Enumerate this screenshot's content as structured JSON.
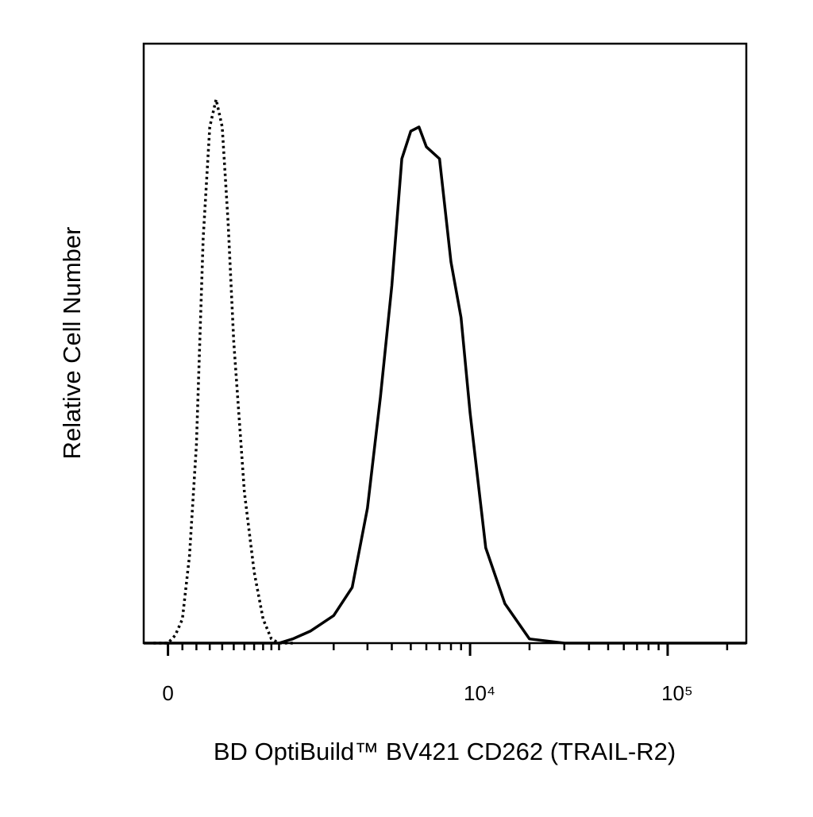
{
  "chart_data": {
    "type": "line",
    "xlabel": "BD OptiBuild™ BV421 CD262 (TRAIL-R2)",
    "ylabel": "Relative Cell Number",
    "xscale": "biexponential",
    "xlim": [
      -170,
      250000
    ],
    "ylim": [
      0,
      100
    ],
    "xticks": [
      0,
      {
        "value": 10000,
        "label": "10⁴"
      },
      {
        "value": 100000,
        "label": "10⁵"
      }
    ],
    "xminorticks": [
      100,
      200,
      300,
      400,
      500,
      600,
      700,
      800,
      900,
      1000,
      2000,
      3000,
      4000,
      5000,
      6000,
      7000,
      8000,
      9000,
      20000,
      30000,
      40000,
      50000,
      60000,
      70000,
      80000,
      90000,
      200000
    ],
    "series": [
      {
        "color": "#000000",
        "dash": "dotted",
        "x": [
          -100,
          0,
          50,
          100,
          150,
          200,
          250,
          300,
          350,
          400,
          450,
          500,
          600,
          700,
          800,
          900,
          1000,
          1200
        ],
        "values": [
          0,
          0,
          1.3,
          4.0,
          14.6,
          33.1,
          67.5,
          86.1,
          90.7,
          86.1,
          70.2,
          50.3,
          25.2,
          11.9,
          4.0,
          0.7,
          0,
          0
        ]
      },
      {
        "color": "#000000",
        "dash": "solid",
        "x": [
          -170,
          1000,
          1200,
          1500,
          2000,
          2500,
          3000,
          3500,
          4000,
          4500,
          5000,
          5500,
          6000,
          7000,
          8000,
          9000,
          10000,
          12000,
          15000,
          20000,
          30000,
          250000
        ],
        "values": [
          0,
          0,
          0.7,
          2.0,
          4.6,
          9.3,
          22.5,
          41.1,
          59.6,
          80.8,
          85.4,
          86.1,
          82.8,
          80.8,
          63.6,
          54.3,
          38.4,
          15.9,
          6.6,
          0.7,
          0,
          0
        ]
      }
    ]
  }
}
